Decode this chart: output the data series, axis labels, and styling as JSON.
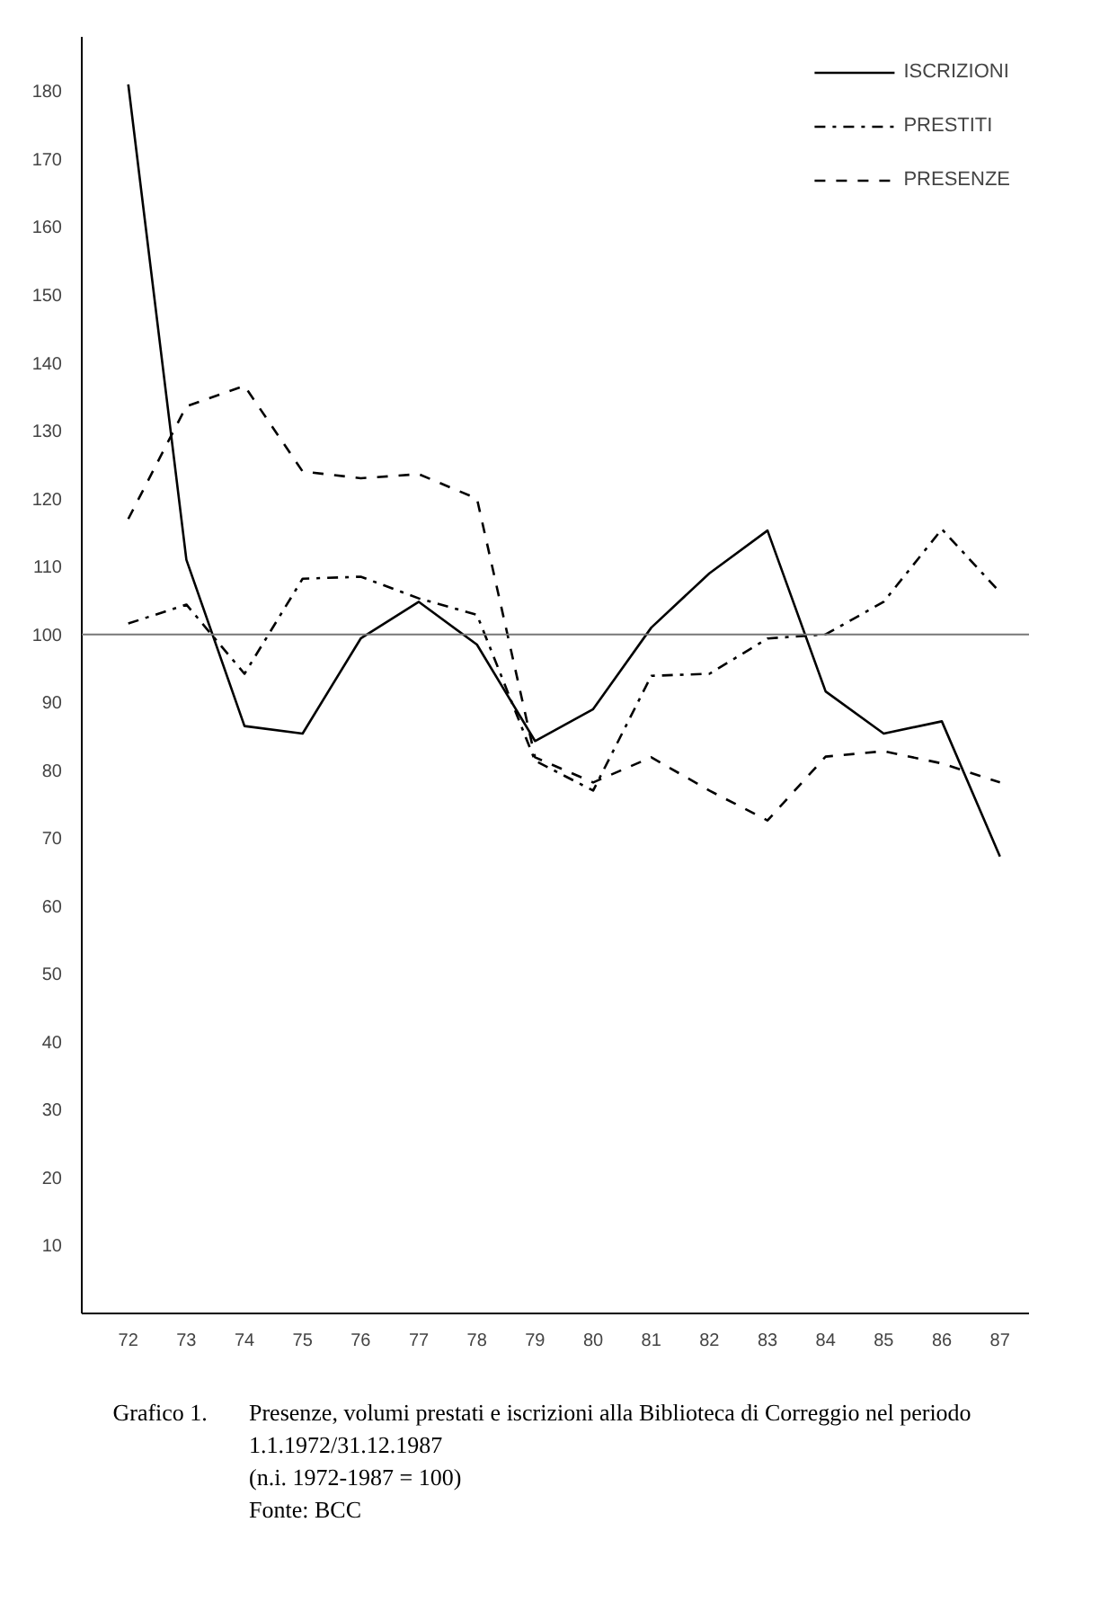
{
  "chart_data": {
    "type": "line",
    "categories": [
      "72",
      "73",
      "74",
      "75",
      "76",
      "77",
      "78",
      "79",
      "80",
      "81",
      "82",
      "83",
      "84",
      "85",
      "86",
      "87"
    ],
    "series": [
      {
        "name": "ISCRIZIONI",
        "color": "#000000",
        "line_style": "solid",
        "values": [
          181,
          111,
          86.5,
          85.4,
          99.4,
          104.8,
          98.5,
          84.3,
          89,
          101,
          109,
          115.3,
          91.6,
          85.4,
          87.2,
          67.3
        ]
      },
      {
        "name": "PRESTITI",
        "color": "#000000",
        "line_style": "dashdot",
        "values": [
          101.6,
          104.4,
          94.2,
          108.2,
          108.5,
          105.3,
          102.9,
          81.4,
          77,
          93.9,
          94.2,
          99.4,
          100,
          104.8,
          115.5,
          106.2
        ]
      },
      {
        "name": "PRESENZE",
        "color": "#000000",
        "line_style": "dashed",
        "values": [
          117,
          133.6,
          136.6,
          124,
          123,
          123.6,
          120,
          81.9,
          78.2,
          81.9,
          77,
          72.6,
          82,
          82.8,
          81,
          78.2
        ]
      }
    ],
    "ylim": [
      0,
      188
    ],
    "yticks": [
      10,
      20,
      30,
      40,
      50,
      60,
      70,
      80,
      90,
      100,
      110,
      120,
      130,
      140,
      150,
      160,
      170,
      180
    ],
    "ref_lines": [
      {
        "axis": "y",
        "value": 100,
        "color": "#777777"
      }
    ],
    "grid": false,
    "legend": "top right",
    "marker": "none",
    "annotations": [
      "Grafico 1.",
      "Presenze, volumi prestati e iscrizioni alla Biblioteca di Correggio nel periodo",
      "1.1.1972/31.12.1987",
      "(n.i. 1972-1987 = 100)",
      "Fonte:  BCC"
    ]
  }
}
